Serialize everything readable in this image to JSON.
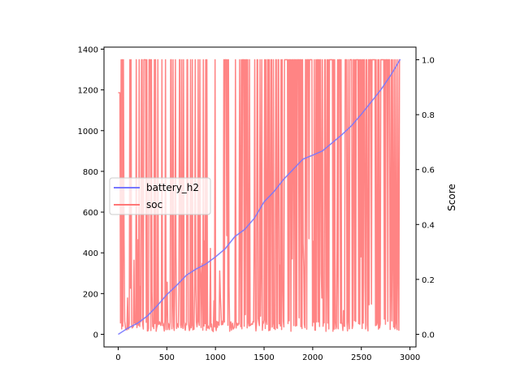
{
  "chart_data": {
    "type": "line",
    "x_ticks": [
      0,
      500,
      1000,
      1500,
      2000,
      2500,
      3000
    ],
    "y_left": {
      "label": "",
      "ticks": [
        0,
        200,
        400,
        600,
        800,
        1000,
        1200,
        1400
      ],
      "lim": [
        -62,
        1410
      ]
    },
    "y_right": {
      "label": "Score",
      "ticks": [
        "0.0",
        "0.2",
        "0.4",
        "0.6",
        "0.8",
        "1.0"
      ],
      "lim": [
        -0.046,
        1.046
      ]
    },
    "xlim": [
      -146,
      3062
    ],
    "grid": false,
    "legend": {
      "placement": "center-left",
      "entries": [
        "battery_h2",
        "soc"
      ]
    },
    "series": [
      {
        "name": "battery_h2",
        "axis": "left",
        "color": "#7777ff",
        "x": [
          0,
          100,
          200,
          300,
          400,
          500,
          600,
          700,
          800,
          900,
          1000,
          1100,
          1200,
          1300,
          1400,
          1500,
          1600,
          1700,
          1800,
          1900,
          2000,
          2100,
          2200,
          2300,
          2400,
          2500,
          2600,
          2700,
          2800,
          2900
        ],
        "y": [
          0,
          30,
          55,
          90,
          140,
          195,
          240,
          290,
          320,
          345,
          380,
          420,
          480,
          515,
          570,
          650,
          700,
          760,
          810,
          860,
          880,
          900,
          940,
          980,
          1025,
          1080,
          1140,
          1200,
          1270,
          1350
        ]
      },
      {
        "name": "soc",
        "axis": "right",
        "color": "#ff7777",
        "note": "rapidly oscillating series between ~0.0 and 1.0",
        "x_range": [
          0,
          2900
        ],
        "y_range": [
          0.0,
          1.0
        ]
      }
    ]
  }
}
